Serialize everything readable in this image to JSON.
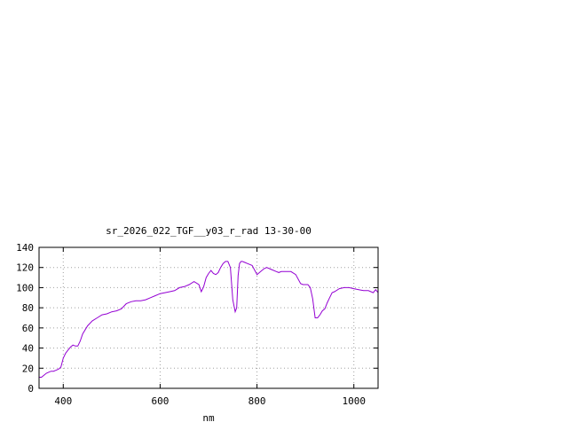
{
  "chart_data": {
    "type": "line",
    "title": "sr_2026_022_TGF__y03_r_rad 13-30-00",
    "xlabel": "nm",
    "ylabel": "",
    "xlim": [
      350,
      1050
    ],
    "ylim": [
      0,
      140
    ],
    "x_ticks": [
      400,
      600,
      800,
      1000
    ],
    "y_ticks": [
      0,
      20,
      40,
      60,
      80,
      100,
      120,
      140
    ],
    "grid": true,
    "series": [
      {
        "color": "#9400d3",
        "x": [
          350,
          355,
          360,
          365,
          370,
          375,
          380,
          385,
          390,
          395,
          400,
          405,
          410,
          415,
          420,
          425,
          430,
          435,
          440,
          450,
          460,
          470,
          480,
          490,
          500,
          510,
          520,
          530,
          540,
          550,
          560,
          570,
          580,
          590,
          600,
          610,
          620,
          630,
          640,
          650,
          660,
          670,
          680,
          685,
          690,
          695,
          700,
          705,
          710,
          715,
          720,
          725,
          730,
          735,
          740,
          745,
          750,
          755,
          758,
          761,
          764,
          767,
          770,
          775,
          780,
          790,
          800,
          810,
          815,
          820,
          830,
          840,
          845,
          850,
          860,
          870,
          880,
          890,
          895,
          900,
          905,
          910,
          915,
          920,
          925,
          930,
          935,
          940,
          945,
          950,
          955,
          960,
          970,
          980,
          990,
          1000,
          1010,
          1020,
          1030,
          1040,
          1045,
          1050
        ],
        "y": [
          11,
          11,
          13,
          15,
          16,
          17,
          17,
          18,
          19,
          21,
          30,
          35,
          38,
          41,
          43,
          42,
          42,
          47,
          54,
          62,
          67,
          70,
          73,
          74,
          76,
          77,
          79,
          84,
          86,
          87,
          87,
          88,
          90,
          92,
          94,
          95,
          96,
          97,
          100,
          101,
          103,
          106,
          103,
          96,
          101,
          110,
          114,
          117,
          114,
          113,
          115,
          120,
          124,
          126,
          126,
          120,
          88,
          76,
          80,
          112,
          124,
          126,
          126,
          125,
          124,
          122,
          113,
          117,
          119,
          120,
          118,
          116,
          115,
          116,
          116,
          116,
          113,
          104,
          103,
          103,
          103,
          100,
          89,
          70,
          70,
          73,
          77,
          79,
          85,
          90,
          95,
          96,
          99,
          100,
          100,
          99,
          98,
          97,
          97,
          95,
          98,
          95
        ]
      }
    ]
  }
}
